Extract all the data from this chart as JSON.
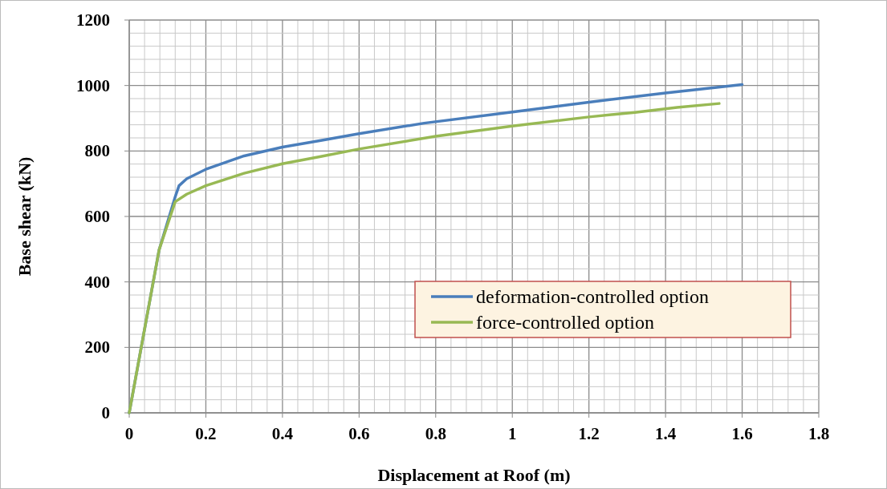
{
  "chart_data": {
    "type": "line",
    "xlabel": "Displacement at Roof (m)",
    "ylabel": "Base shear (kN)",
    "xlim": [
      0,
      1.8
    ],
    "ylim": [
      0,
      1200
    ],
    "xticks": [
      0,
      {
        "value": 0.04,
        "label": null
      },
      {
        "value": 0.08,
        "label": null
      },
      {
        "value": 0.12,
        "label": null
      },
      {
        "value": 0.16,
        "label": null
      },
      0.2,
      {
        "value": 0.24,
        "label": null
      },
      {
        "value": 0.28,
        "label": null
      },
      {
        "value": 0.32,
        "label": null
      },
      {
        "value": 0.36,
        "label": null
      },
      0.4,
      {
        "value": 0.44,
        "label": null
      },
      {
        "value": 0.48,
        "label": null
      },
      {
        "value": 0.52,
        "label": null
      },
      {
        "value": 0.56,
        "label": null
      },
      0.6,
      {
        "value": 0.64,
        "label": null
      },
      {
        "value": 0.68,
        "label": null
      },
      {
        "value": 0.72,
        "label": null
      },
      {
        "value": 0.76,
        "label": null
      },
      0.8,
      {
        "value": 0.84,
        "label": null
      },
      {
        "value": 0.88,
        "label": null
      },
      {
        "value": 0.92,
        "label": null
      },
      {
        "value": 0.96,
        "label": null
      },
      1,
      {
        "value": 1.04,
        "label": null
      },
      {
        "value": 1.08,
        "label": null
      },
      {
        "value": 1.12,
        "label": null
      },
      {
        "value": 1.16,
        "label": null
      },
      1.2,
      {
        "value": 1.24,
        "label": null
      },
      {
        "value": 1.28,
        "label": null
      },
      {
        "value": 1.32,
        "label": null
      },
      {
        "value": 1.36,
        "label": null
      },
      1.4,
      {
        "value": 1.44,
        "label": null
      },
      {
        "value": 1.48,
        "label": null
      },
      {
        "value": 1.52,
        "label": null
      },
      {
        "value": 1.56,
        "label": null
      },
      1.6,
      {
        "value": 1.64,
        "label": null
      },
      {
        "value": 1.68,
        "label": null
      },
      {
        "value": 1.72,
        "label": null
      },
      {
        "value": 1.76,
        "label": null
      },
      1.8
    ],
    "yticks": [
      0,
      {
        "value": 40,
        "label": null
      },
      {
        "value": 80,
        "label": null
      },
      {
        "value": 120,
        "label": null
      },
      {
        "value": 160,
        "label": null
      },
      200,
      {
        "value": 240,
        "label": null
      },
      {
        "value": 280,
        "label": null
      },
      {
        "value": 320,
        "label": null
      },
      {
        "value": 360,
        "label": null
      },
      400,
      {
        "value": 440,
        "label": null
      },
      {
        "value": 480,
        "label": null
      },
      {
        "value": 520,
        "label": null
      },
      {
        "value": 560,
        "label": null
      },
      600,
      {
        "value": 640,
        "label": null
      },
      {
        "value": 680,
        "label": null
      },
      {
        "value": 720,
        "label": null
      },
      {
        "value": 760,
        "label": null
      },
      800,
      {
        "value": 840,
        "label": null
      },
      {
        "value": 880,
        "label": null
      },
      {
        "value": 920,
        "label": null
      },
      {
        "value": 960,
        "label": null
      },
      1000,
      {
        "value": 1040,
        "label": null
      },
      {
        "value": 1080,
        "label": null
      },
      {
        "value": 1120,
        "label": null
      },
      {
        "value": 1160,
        "label": null
      },
      1200
    ],
    "grid": true,
    "legend": "bottom right",
    "marker": "none",
    "line_style": "solid",
    "series": [
      {
        "name": "deformation-controlled option",
        "color": "#4a7ebb",
        "x": [
          0,
          0.078,
          0.12,
          0.13,
          0.15,
          0.2,
          0.3,
          0.4,
          0.5,
          0.6,
          0.77,
          1.0,
          1.2,
          1.4,
          1.6
        ],
        "values": [
          0,
          498,
          660,
          694,
          715,
          744,
          785,
          812,
          832,
          853,
          885,
          919,
          949,
          977,
          1003
        ]
      },
      {
        "name": "force-controlled option",
        "color": "#98b954",
        "x": [
          0,
          0.078,
          0.12,
          0.15,
          0.2,
          0.3,
          0.4,
          0.5,
          0.6,
          0.8,
          1.0,
          1.2,
          1.32,
          1.43,
          1.54
        ],
        "values": [
          0,
          498,
          645,
          668,
          694,
          732,
          761,
          783,
          806,
          845,
          876,
          904,
          918,
          933,
          945
        ]
      }
    ]
  }
}
